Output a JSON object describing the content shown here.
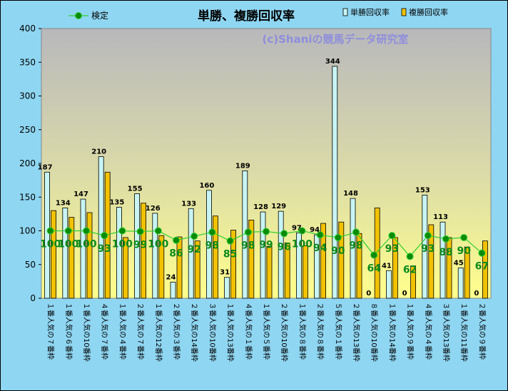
{
  "chart_data": {
    "type": "bar",
    "title": "単勝、複勝回収率",
    "watermark": "(c)Shaniの競馬データ研究室",
    "xlabel": "",
    "ylabel": "",
    "ylim": [
      0,
      400
    ],
    "yticks": [
      0,
      50,
      100,
      150,
      200,
      250,
      300,
      350,
      400
    ],
    "grid": false,
    "legend_position": "top",
    "categories": [
      "１番人気の７番枠",
      "１番人気の６番枠",
      "１番人気の10番枠",
      "４番人気の７番枠",
      "１番人気の４番枠",
      "２番人気の７番枠",
      "１番人気の12番枠",
      "２番人気の３番枠",
      "２番人気の14番枠",
      "３番人気の10番枠",
      "１番人気の13番枠",
      "４番人気の１番枠",
      "１番人気の５番枠",
      "２番人気の10番枠",
      "１番人気の８番枠",
      "２番人気の８番枠",
      "５番人気の１番枠",
      "２番人気の13番枠",
      "８番人気の10番枠",
      "１番人気の14番枠",
      "１番人気の９番枠",
      "４番人気の４番枠",
      "３番人気の13番枠",
      "１番人気の11番枠",
      "２番人気の９番枠"
    ],
    "series": [
      {
        "name": "単勝回収率",
        "type": "bar",
        "color": "#c8f4f4",
        "values": [
          187,
          134,
          147,
          210,
          135,
          155,
          126,
          24,
          133,
          160,
          31,
          189,
          128,
          129,
          97,
          94,
          344,
          148,
          0,
          41,
          0,
          153,
          113,
          45,
          0
        ],
        "labels": [
          "187",
          "134",
          "147",
          "210",
          "135",
          "155",
          "126",
          "24",
          "133",
          "160",
          "31",
          "189",
          "128",
          "129",
          "97",
          "94",
          "344",
          "148",
          "0",
          "41",
          "0",
          "153",
          "113",
          "45",
          "0"
        ]
      },
      {
        "name": "複勝回収率",
        "type": "bar",
        "color": "#f2c200",
        "values": [
          130,
          120,
          127,
          187,
          90,
          141,
          93,
          91,
          85,
          122,
          101,
          116,
          77,
          82,
          78,
          111,
          113,
          96,
          134,
          90,
          48,
          109,
          90,
          76,
          85
        ]
      },
      {
        "name": "検定",
        "type": "line",
        "color": "#2fd02f",
        "values": [
          100,
          100,
          100,
          93,
          100,
          99,
          100,
          86,
          92,
          98,
          85,
          98,
          99,
          96,
          100,
          94,
          90,
          98,
          64,
          93,
          62,
          93,
          88,
          90,
          67
        ],
        "labels": [
          "100",
          "100",
          "100",
          "93",
          "100",
          "99",
          "100",
          "86",
          "92",
          "98",
          "85",
          "98",
          "99",
          "96",
          "100",
          "94",
          "90",
          "98",
          "64",
          "93",
          "62",
          "93",
          "88",
          "90",
          "67"
        ]
      }
    ]
  }
}
